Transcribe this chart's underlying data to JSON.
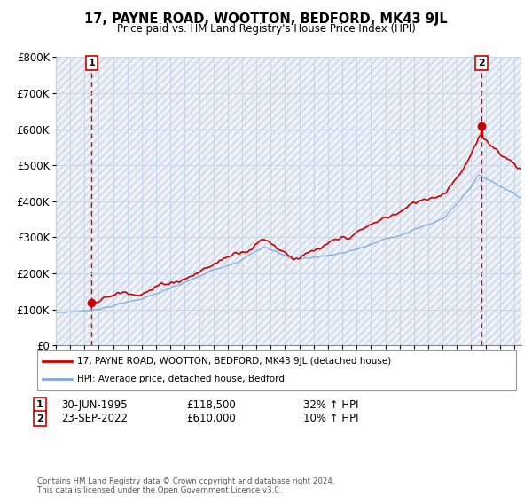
{
  "title": "17, PAYNE ROAD, WOOTTON, BEDFORD, MK43 9JL",
  "subtitle": "Price paid vs. HM Land Registry's House Price Index (HPI)",
  "legend_line1": "17, PAYNE ROAD, WOOTTON, BEDFORD, MK43 9JL (detached house)",
  "legend_line2": "HPI: Average price, detached house, Bedford",
  "point1_date": "30-JUN-1995",
  "point1_price": "£118,500",
  "point1_hpi": "32% ↑ HPI",
  "point2_date": "23-SEP-2022",
  "point2_price": "£610,000",
  "point2_hpi": "10% ↑ HPI",
  "footer": "Contains HM Land Registry data © Crown copyright and database right 2024.\nThis data is licensed under the Open Government Licence v3.0.",
  "price_line_color": "#cc0000",
  "hpi_line_color": "#7aaadd",
  "grid_color": "#c8d8e8",
  "ylim": [
    0,
    800000
  ],
  "yticks": [
    0,
    100000,
    200000,
    300000,
    400000,
    500000,
    600000,
    700000,
    800000
  ],
  "ytick_labels": [
    "£0",
    "£100K",
    "£200K",
    "£300K",
    "£400K",
    "£500K",
    "£600K",
    "£700K",
    "£800K"
  ],
  "xlim_start": 1993.0,
  "xlim_end": 2025.5,
  "point1_x": 1995.5,
  "point1_y": 118500,
  "point2_x": 2022.72,
  "point2_y": 610000
}
